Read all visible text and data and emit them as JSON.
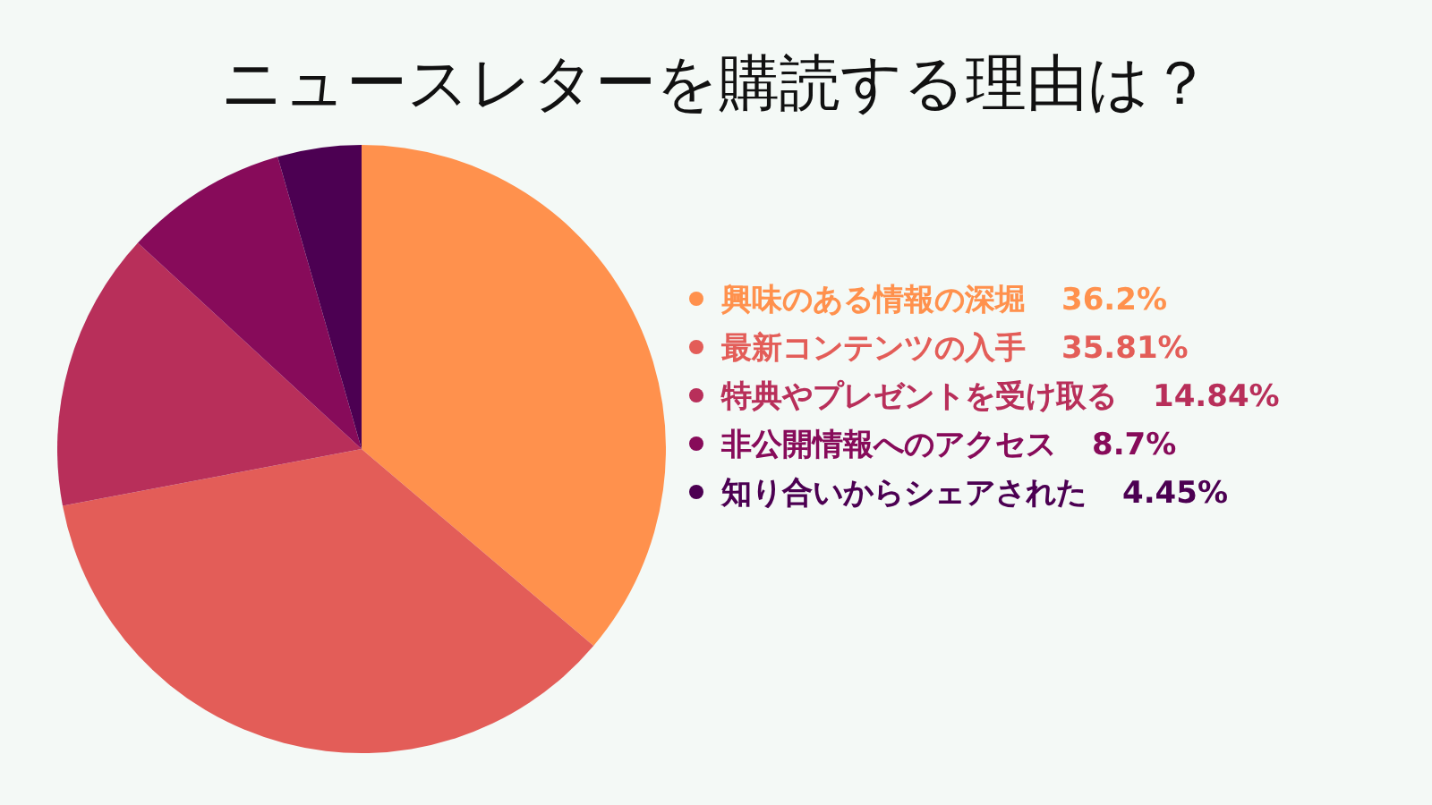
{
  "chart_data": {
    "type": "pie",
    "title": "ニュースレターを購読する理由は？",
    "categories": [
      "興味のある情報の深堀",
      "最新コンテンツの入手",
      "特典やプレゼントを受け取る",
      "非公開情報へのアクセス",
      "知り合いからシェアされた"
    ],
    "values": [
      36.2,
      35.81,
      14.84,
      8.7,
      4.45
    ],
    "value_labels": [
      "36.2%",
      "35.81%",
      "14.84%",
      "8.7%",
      "4.45%"
    ],
    "colors": [
      "#ff914d",
      "#e35d58",
      "#b82f5a",
      "#870b5a",
      "#4c0052"
    ],
    "legend": "right"
  }
}
